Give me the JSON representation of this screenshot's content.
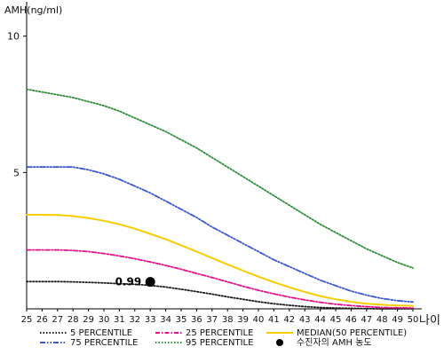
{
  "chart_data": {
    "type": "line",
    "ylabel": "AMH(ng/ml)",
    "xlabel": "나이",
    "xlim": [
      25,
      50
    ],
    "ylim": [
      0,
      11
    ],
    "y_ticks": [
      5,
      10
    ],
    "x": [
      25,
      26,
      27,
      28,
      29,
      30,
      31,
      32,
      33,
      34,
      35,
      36,
      37,
      38,
      39,
      40,
      41,
      42,
      43,
      44,
      45,
      46,
      47,
      48,
      49,
      50
    ],
    "series": [
      {
        "name": "5 PERCENTILE",
        "color": "#1a1a1a",
        "dash": "dotted",
        "values": [
          1.0,
          1.0,
          1.0,
          0.99,
          0.97,
          0.95,
          0.92,
          0.9,
          0.86,
          0.8,
          0.72,
          0.63,
          0.54,
          0.44,
          0.35,
          0.26,
          0.19,
          0.13,
          0.08,
          0.05,
          0.03,
          0.02,
          0.01,
          0.0,
          0.0,
          0.0
        ]
      },
      {
        "name": "25 PERCENTILE",
        "color": "#e0128a",
        "dash": "dashdot",
        "values": [
          2.16,
          2.16,
          2.16,
          2.14,
          2.1,
          2.03,
          1.94,
          1.84,
          1.72,
          1.59,
          1.45,
          1.3,
          1.15,
          0.99,
          0.83,
          0.68,
          0.55,
          0.43,
          0.33,
          0.24,
          0.17,
          0.12,
          0.08,
          0.05,
          0.04,
          0.03
        ]
      },
      {
        "name": "MEDIAN(50 PERCENTILE)",
        "color": "#f5cc00",
        "dash": "solid",
        "values": [
          3.45,
          3.45,
          3.44,
          3.4,
          3.33,
          3.23,
          3.1,
          2.94,
          2.75,
          2.55,
          2.33,
          2.1,
          1.86,
          1.63,
          1.4,
          1.18,
          0.98,
          0.79,
          0.62,
          0.47,
          0.35,
          0.26,
          0.19,
          0.15,
          0.12,
          0.11
        ]
      },
      {
        "name": "75 PERCENTILE",
        "color": "#3a57c8",
        "dash": "dashdotdot",
        "values": [
          5.2,
          5.2,
          5.2,
          5.2,
          5.1,
          4.95,
          4.75,
          4.5,
          4.25,
          3.95,
          3.65,
          3.35,
          3.0,
          2.7,
          2.4,
          2.1,
          1.8,
          1.55,
          1.3,
          1.05,
          0.85,
          0.65,
          0.5,
          0.38,
          0.3,
          0.25
        ]
      },
      {
        "name": "95 PERCENTILE",
        "color": "#2e8b3a",
        "dash": "dotted",
        "values": [
          8.05,
          7.95,
          7.85,
          7.75,
          7.6,
          7.45,
          7.25,
          7.0,
          6.75,
          6.5,
          6.2,
          5.9,
          5.55,
          5.2,
          4.85,
          4.5,
          4.15,
          3.8,
          3.45,
          3.1,
          2.8,
          2.5,
          2.2,
          1.95,
          1.7,
          1.5
        ]
      }
    ],
    "marker": {
      "name": "수진자의 AMH 농도",
      "x": 33,
      "y": 0.99,
      "label": "0.99"
    },
    "x_tick_labels": [
      "25",
      "26",
      "27",
      "28",
      "29",
      "30",
      "31",
      "32",
      "33",
      "34",
      "35",
      "36",
      "37",
      "38",
      "39",
      "40",
      "41",
      "42",
      "43",
      "44",
      "45",
      "46",
      "47",
      "48",
      "49",
      "50"
    ],
    "y_tick_labels": [
      "5",
      "10"
    ],
    "legend": [
      {
        "label": "5 PERCENTILE",
        "color": "#1a1a1a",
        "dash": "dotted"
      },
      {
        "label": "25 PERCENTILE",
        "color": "#e0128a",
        "dash": "dashdot"
      },
      {
        "label": "MEDIAN(50 PERCENTILE)",
        "color": "#f5cc00",
        "dash": "solid"
      },
      {
        "label": "75 PERCENTILE",
        "color": "#3a57c8",
        "dash": "dashdotdot"
      },
      {
        "label": "95 PERCENTILE",
        "color": "#2e8b3a",
        "dash": "dotted"
      },
      {
        "label": "수진자의 AMH 농도",
        "color": "#000000",
        "dash": "marker"
      }
    ],
    "grid": false,
    "legend_placement": "bottom"
  }
}
